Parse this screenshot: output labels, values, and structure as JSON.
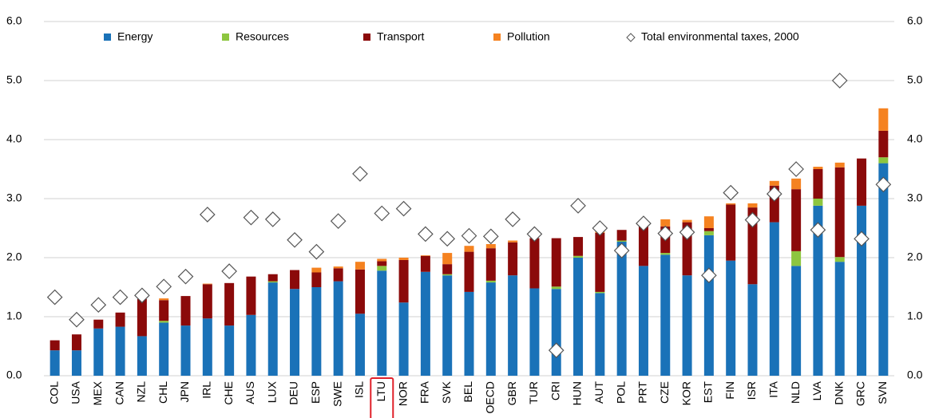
{
  "chart_data": {
    "type": "stacked-bar",
    "categories": [
      "COL",
      "USA",
      "MEX",
      "CAN",
      "NZL",
      "CHL",
      "JPN",
      "IRL",
      "CHE",
      "AUS",
      "LUX",
      "DEU",
      "ESP",
      "SWE",
      "ISL",
      "LTU",
      "NOR",
      "FRA",
      "SVK",
      "BEL",
      "OECD",
      "GBR",
      "TUR",
      "CRI",
      "HUN",
      "AUT",
      "POL",
      "PRT",
      "CZE",
      "KOR",
      "EST",
      "FIN",
      "ISR",
      "ITA",
      "NLD",
      "LVA",
      "DNK",
      "GRC",
      "SVN"
    ],
    "series": [
      {
        "name": "Energy",
        "color": "#1a72b8",
        "values": [
          0.43,
          0.43,
          0.8,
          0.83,
          0.67,
          0.9,
          0.85,
          0.97,
          0.85,
          1.03,
          1.58,
          1.47,
          1.5,
          1.6,
          1.05,
          1.78,
          1.24,
          1.76,
          1.7,
          1.42,
          1.58,
          1.7,
          1.48,
          1.47,
          2.0,
          1.4,
          2.27,
          1.86,
          2.05,
          1.7,
          2.38,
          1.95,
          1.55,
          2.6,
          1.86,
          2.88,
          1.93,
          2.88,
          3.6
        ]
      },
      {
        "name": "Resources",
        "color": "#8dc63f",
        "values": [
          0,
          0,
          0,
          0,
          0,
          0.03,
          0,
          0,
          0,
          0,
          0.02,
          0,
          0,
          0,
          0,
          0.08,
          0,
          0,
          0.02,
          0,
          0.03,
          0,
          0,
          0.04,
          0.03,
          0.02,
          0.02,
          0,
          0.03,
          0,
          0.07,
          0,
          0,
          0,
          0.25,
          0.12,
          0.08,
          0,
          0.1
        ]
      },
      {
        "name": "Transport",
        "color": "#8b0a0a",
        "values": [
          0.17,
          0.27,
          0.15,
          0.24,
          0.63,
          0.35,
          0.5,
          0.58,
          0.72,
          0.65,
          0.12,
          0.32,
          0.25,
          0.22,
          0.75,
          0.08,
          0.72,
          0.27,
          0.17,
          0.68,
          0.55,
          0.56,
          0.85,
          0.82,
          0.32,
          1.0,
          0.18,
          0.7,
          0.45,
          0.9,
          0.05,
          0.95,
          1.3,
          0.62,
          1.05,
          0.5,
          1.52,
          0.8,
          0.45
        ]
      },
      {
        "name": "Pollution",
        "color": "#f58220",
        "values": [
          0,
          0,
          0,
          0,
          0,
          0.03,
          0,
          0.01,
          0,
          0,
          0,
          0,
          0.08,
          0.03,
          0.13,
          0.04,
          0.04,
          0.01,
          0.19,
          0.1,
          0.07,
          0.03,
          0,
          0,
          0,
          0.02,
          0,
          0.02,
          0.12,
          0.04,
          0.2,
          0.02,
          0.07,
          0.08,
          0.18,
          0.04,
          0.08,
          0,
          0.38
        ]
      }
    ],
    "markers": {
      "name": "Total environmental taxes, 2000",
      "values": [
        1.33,
        0.95,
        1.2,
        1.33,
        1.36,
        1.51,
        1.68,
        2.73,
        1.77,
        2.68,
        2.65,
        2.3,
        2.1,
        2.62,
        3.42,
        2.75,
        2.83,
        2.4,
        2.32,
        2.37,
        2.36,
        2.65,
        2.4,
        0.43,
        2.88,
        2.5,
        2.12,
        2.58,
        2.41,
        2.43,
        1.7,
        3.1,
        2.64,
        3.08,
        3.5,
        2.47,
        5.0,
        2.32,
        3.24
      ]
    },
    "ylim": [
      0,
      6
    ],
    "yticks": [
      {
        "value": 0,
        "label": "0.0"
      },
      {
        "value": 1,
        "label": "1.0"
      },
      {
        "value": 2,
        "label": "2.0"
      },
      {
        "value": 3,
        "label": "3.0"
      },
      {
        "value": 4,
        "label": "4.0"
      },
      {
        "value": 5,
        "label": "5.0"
      },
      {
        "value": 6,
        "label": "6.0"
      }
    ],
    "grid": true,
    "highlight": "LTU",
    "highlight_color": "#e0202a"
  }
}
